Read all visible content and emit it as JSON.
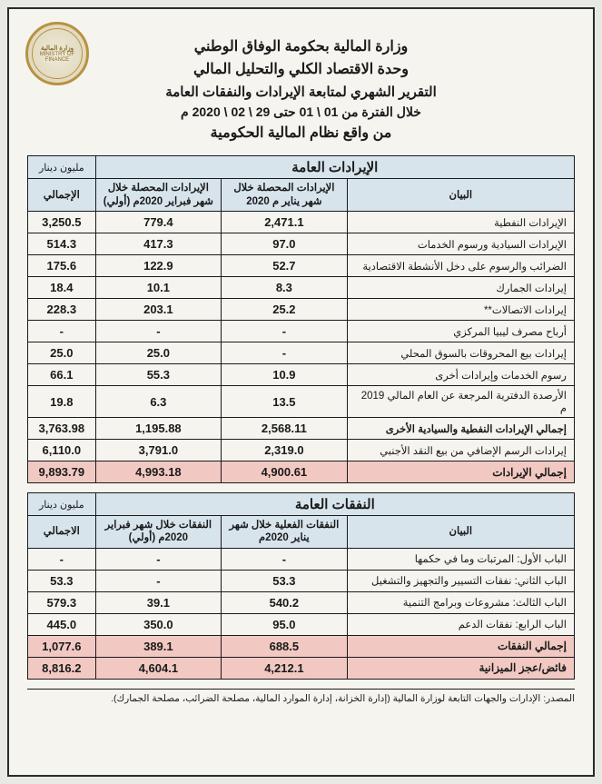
{
  "seal": {
    "top_ar": "وزارة المالية",
    "bottom_en": "MINISTRY OF FINANCE"
  },
  "header": {
    "line1": "وزارة المالية بحكومة الوفاق الوطني",
    "line2": "وحدة الاقتصاد الكلي والتحليل المالي",
    "line3": "التقرير الشهري لمتابعة الإيرادات والنفقات العامة",
    "line4": "خلال الفترة من 01 \\ 01 حتى 29 \\ 02 \\ 2020 م",
    "line5": "من واقع نظام المالية الحكومية"
  },
  "revenues": {
    "title": "الإيرادات العامة",
    "unit": "مليون دينار",
    "cols": {
      "item": "البيان",
      "jan": "الإيرادات المحصلة خلال شهر يناير م 2020",
      "feb": "الإيرادات المحصلة خلال شهر فبراير 2020م (أولي)",
      "total": "الإجمالي"
    },
    "rows": [
      {
        "label": "الإيرادات النفطية",
        "jan": "2,471.1",
        "feb": "779.4",
        "total": "3,250.5"
      },
      {
        "label": "الإيرادات السيادية ورسوم الخدمات",
        "jan": "97.0",
        "feb": "417.3",
        "total": "514.3"
      },
      {
        "label": "الضرائب والرسوم على دخل الأنشطة الاقتصادية",
        "jan": "52.7",
        "feb": "122.9",
        "total": "175.6"
      },
      {
        "label": "إيرادات الجمارك",
        "jan": "8.3",
        "feb": "10.1",
        "total": "18.4"
      },
      {
        "label": "إيرادات الاتصالات**",
        "jan": "25.2",
        "feb": "203.1",
        "total": "228.3"
      },
      {
        "label": "أرباح مصرف ليبيا المركزي",
        "jan": "-",
        "feb": "-",
        "total": "-"
      },
      {
        "label": "إيرادات بيع المحروقات بالسوق المحلي",
        "jan": "-",
        "feb": "25.0",
        "total": "25.0"
      },
      {
        "label": "رسوم الخدمات وإيرادات أخرى",
        "jan": "10.9",
        "feb": "55.3",
        "total": "66.1"
      },
      {
        "label": "الأرصدة الدفترية المرجعة عن العام المالي 2019 م",
        "jan": "13.5",
        "feb": "6.3",
        "total": "19.8"
      },
      {
        "label": "إجمالي الإيرادات النفطية والسيادية الأخرى",
        "jan": "2,568.11",
        "feb": "1,195.88",
        "total": "3,763.98",
        "subtotal": true
      },
      {
        "label": "إيرادات الرسم الإضافي من بيع النقد الأجنبي",
        "jan": "2,319.0",
        "feb": "3,791.0",
        "total": "6,110.0"
      }
    ],
    "grand": {
      "label": "إجمالي الإيرادات",
      "jan": "4,900.61",
      "feb": "4,993.18",
      "total": "9,893.79"
    }
  },
  "expenditures": {
    "title": "النفقات العامة",
    "unit": "مليون دينار",
    "cols": {
      "item": "البيان",
      "jan": "النفقات الفعلية خلال شهر يناير 2020م",
      "feb": "النفقات خلال شهر فبراير 2020م (أولي)",
      "total": "الاجمالي"
    },
    "rows": [
      {
        "label": "الباب الأول: المرتبات وما في حكمها",
        "jan": "-",
        "feb": "-",
        "total": "-"
      },
      {
        "label": "الباب الثاني: نفقات التسيير والتجهيز والتشغيل",
        "jan": "53.3",
        "feb": "-",
        "total": "53.3"
      },
      {
        "label": "الباب الثالث: مشروعات وبرامج التنمية",
        "jan": "540.2",
        "feb": "39.1",
        "total": "579.3"
      },
      {
        "label": "الباب الرابع: نفقات الدعم",
        "jan": "95.0",
        "feb": "350.0",
        "total": "445.0"
      }
    ],
    "subtotal": {
      "label": "إجمالي النفقات",
      "jan": "688.5",
      "feb": "389.1",
      "total": "1,077.6"
    },
    "surplus": {
      "label": "فائض/عجز الميزانية",
      "jan": "4,212.1",
      "feb": "4,604.1",
      "total": "8,816.2"
    }
  },
  "footnote": "المصدر: الإدارات والجهات التابعة لوزارة المالية (إدارة الخزانة، إدارة الموارد المالية، مصلحة الضرائب، مصلحة الجمارك)."
}
